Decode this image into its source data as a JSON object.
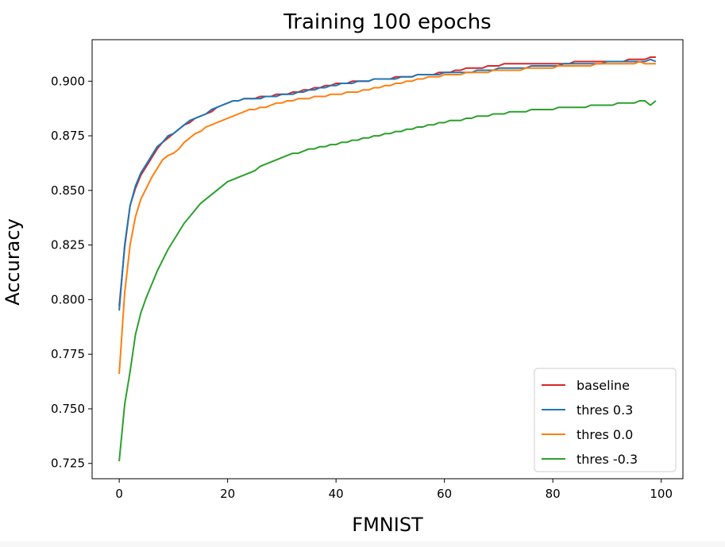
{
  "chart_data": {
    "type": "line",
    "title": "Training 100 epochs",
    "xlabel": "FMNIST",
    "ylabel": "Accuracy",
    "xlim": [
      -5,
      104
    ],
    "ylim": [
      0.718,
      0.919
    ],
    "xticks": [
      0,
      20,
      40,
      60,
      80,
      100
    ],
    "yticks": [
      0.725,
      0.75,
      0.775,
      0.8,
      0.825,
      0.85,
      0.875,
      0.9
    ],
    "xtick_labels": [
      "0",
      "20",
      "40",
      "60",
      "80",
      "100"
    ],
    "ytick_labels": [
      "0.725",
      "0.750",
      "0.775",
      "0.800",
      "0.825",
      "0.850",
      "0.875",
      "0.900"
    ],
    "grid": false,
    "legend_position": "lower-right",
    "x": [
      0,
      1,
      2,
      3,
      4,
      5,
      6,
      7,
      8,
      9,
      10,
      11,
      12,
      13,
      14,
      15,
      16,
      17,
      18,
      19,
      20,
      21,
      22,
      23,
      24,
      25,
      26,
      27,
      28,
      29,
      30,
      31,
      32,
      33,
      34,
      35,
      36,
      37,
      38,
      39,
      40,
      41,
      42,
      43,
      44,
      45,
      46,
      47,
      48,
      49,
      50,
      51,
      52,
      53,
      54,
      55,
      56,
      57,
      58,
      59,
      60,
      61,
      62,
      63,
      64,
      65,
      66,
      67,
      68,
      69,
      70,
      71,
      72,
      73,
      74,
      75,
      76,
      77,
      78,
      79,
      80,
      81,
      82,
      83,
      84,
      85,
      86,
      87,
      88,
      89,
      90,
      91,
      92,
      93,
      94,
      95,
      96,
      97,
      98,
      99
    ],
    "series": [
      {
        "name": "baseline",
        "color": "#d62728",
        "values": [
          0.797,
          0.824,
          0.843,
          0.851,
          0.857,
          0.861,
          0.865,
          0.869,
          0.872,
          0.874,
          0.876,
          0.878,
          0.88,
          0.881,
          0.883,
          0.884,
          0.885,
          0.886,
          0.888,
          0.889,
          0.89,
          0.891,
          0.891,
          0.892,
          0.892,
          0.892,
          0.893,
          0.893,
          0.893,
          0.894,
          0.894,
          0.894,
          0.895,
          0.895,
          0.896,
          0.896,
          0.897,
          0.897,
          0.898,
          0.898,
          0.899,
          0.899,
          0.899,
          0.9,
          0.9,
          0.9,
          0.9,
          0.901,
          0.901,
          0.901,
          0.901,
          0.902,
          0.902,
          0.902,
          0.902,
          0.903,
          0.903,
          0.903,
          0.903,
          0.904,
          0.904,
          0.904,
          0.905,
          0.905,
          0.906,
          0.906,
          0.906,
          0.906,
          0.907,
          0.907,
          0.907,
          0.908,
          0.908,
          0.908,
          0.908,
          0.908,
          0.908,
          0.908,
          0.908,
          0.908,
          0.908,
          0.908,
          0.908,
          0.908,
          0.909,
          0.909,
          0.909,
          0.909,
          0.909,
          0.909,
          0.909,
          0.909,
          0.909,
          0.909,
          0.91,
          0.91,
          0.91,
          0.91,
          0.911,
          0.911
        ]
      },
      {
        "name": "thres 0.3",
        "color": "#1f77b4",
        "values": [
          0.795,
          0.825,
          0.843,
          0.852,
          0.858,
          0.862,
          0.866,
          0.87,
          0.872,
          0.875,
          0.876,
          0.878,
          0.88,
          0.882,
          0.883,
          0.884,
          0.885,
          0.887,
          0.888,
          0.889,
          0.89,
          0.891,
          0.891,
          0.892,
          0.892,
          0.892,
          0.892,
          0.893,
          0.893,
          0.893,
          0.894,
          0.894,
          0.894,
          0.895,
          0.895,
          0.896,
          0.896,
          0.897,
          0.897,
          0.898,
          0.898,
          0.899,
          0.899,
          0.899,
          0.9,
          0.9,
          0.9,
          0.901,
          0.901,
          0.901,
          0.901,
          0.901,
          0.902,
          0.902,
          0.902,
          0.903,
          0.903,
          0.903,
          0.903,
          0.903,
          0.904,
          0.904,
          0.904,
          0.904,
          0.904,
          0.904,
          0.905,
          0.905,
          0.905,
          0.905,
          0.906,
          0.906,
          0.906,
          0.906,
          0.906,
          0.906,
          0.907,
          0.907,
          0.907,
          0.907,
          0.907,
          0.907,
          0.908,
          0.908,
          0.908,
          0.908,
          0.908,
          0.908,
          0.908,
          0.908,
          0.909,
          0.909,
          0.909,
          0.909,
          0.909,
          0.909,
          0.909,
          0.909,
          0.91,
          0.909
        ]
      },
      {
        "name": "thres 0.0",
        "color": "#ff7f0e",
        "values": [
          0.766,
          0.803,
          0.825,
          0.838,
          0.846,
          0.851,
          0.856,
          0.86,
          0.864,
          0.866,
          0.867,
          0.869,
          0.872,
          0.874,
          0.876,
          0.877,
          0.879,
          0.88,
          0.881,
          0.882,
          0.883,
          0.884,
          0.885,
          0.886,
          0.887,
          0.887,
          0.888,
          0.888,
          0.889,
          0.89,
          0.89,
          0.891,
          0.891,
          0.892,
          0.892,
          0.892,
          0.893,
          0.893,
          0.893,
          0.894,
          0.894,
          0.894,
          0.895,
          0.895,
          0.895,
          0.896,
          0.896,
          0.897,
          0.897,
          0.898,
          0.898,
          0.899,
          0.899,
          0.9,
          0.9,
          0.901,
          0.901,
          0.902,
          0.902,
          0.902,
          0.903,
          0.903,
          0.903,
          0.903,
          0.904,
          0.904,
          0.904,
          0.904,
          0.904,
          0.905,
          0.905,
          0.905,
          0.905,
          0.905,
          0.905,
          0.906,
          0.906,
          0.906,
          0.906,
          0.906,
          0.906,
          0.907,
          0.907,
          0.907,
          0.907,
          0.907,
          0.907,
          0.907,
          0.908,
          0.908,
          0.908,
          0.908,
          0.908,
          0.908,
          0.908,
          0.908,
          0.909,
          0.908,
          0.908,
          0.908
        ]
      },
      {
        "name": "thres -0.3",
        "color": "#2ca02c",
        "values": [
          0.726,
          0.752,
          0.767,
          0.784,
          0.794,
          0.801,
          0.807,
          0.813,
          0.818,
          0.823,
          0.827,
          0.831,
          0.835,
          0.838,
          0.841,
          0.844,
          0.846,
          0.848,
          0.85,
          0.852,
          0.854,
          0.855,
          0.856,
          0.857,
          0.858,
          0.859,
          0.861,
          0.862,
          0.863,
          0.864,
          0.865,
          0.866,
          0.867,
          0.867,
          0.868,
          0.869,
          0.869,
          0.87,
          0.87,
          0.871,
          0.871,
          0.872,
          0.872,
          0.873,
          0.873,
          0.874,
          0.874,
          0.875,
          0.875,
          0.876,
          0.876,
          0.877,
          0.877,
          0.878,
          0.878,
          0.879,
          0.879,
          0.88,
          0.88,
          0.881,
          0.881,
          0.882,
          0.882,
          0.882,
          0.883,
          0.883,
          0.884,
          0.884,
          0.884,
          0.885,
          0.885,
          0.885,
          0.886,
          0.886,
          0.886,
          0.886,
          0.887,
          0.887,
          0.887,
          0.887,
          0.887,
          0.888,
          0.888,
          0.888,
          0.888,
          0.888,
          0.888,
          0.889,
          0.889,
          0.889,
          0.889,
          0.889,
          0.89,
          0.89,
          0.89,
          0.89,
          0.891,
          0.891,
          0.889,
          0.891
        ]
      }
    ]
  }
}
